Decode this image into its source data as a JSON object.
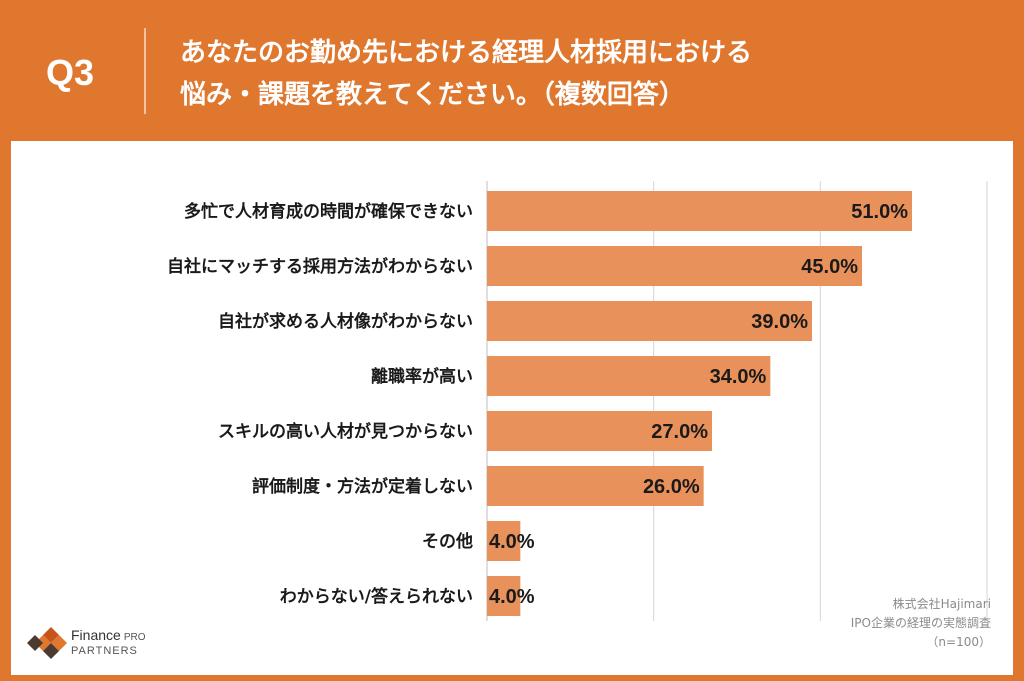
{
  "header": {
    "question_number": "Q3",
    "title_line1": "あなたのお勤め先における経理人材採用における",
    "title_line2": "悩み・課題を教えてください。（複数回答）"
  },
  "colors": {
    "background": "#e0772f",
    "bar": "#e9915a",
    "panel": "#ffffff"
  },
  "chart_data": {
    "type": "bar",
    "orientation": "horizontal",
    "categories": [
      "多忙で人材育成の時間が確保できない",
      "自社にマッチする採用方法がわからない",
      "自社が求める人材像がわからない",
      "離職率が高い",
      "スキルの高い人材が見つからない",
      "評価制度・方法が定着しない",
      "その他",
      "わからない/答えられない"
    ],
    "values": [
      51.0,
      45.0,
      39.0,
      34.0,
      27.0,
      26.0,
      4.0,
      4.0
    ],
    "value_labels": [
      "51.0%",
      "45.0%",
      "39.0%",
      "34.0%",
      "27.0%",
      "26.0%",
      "4.0%",
      "4.0%"
    ],
    "xlim": [
      0,
      60
    ],
    "gridlines": [
      0,
      20,
      40,
      60
    ],
    "grid": true,
    "legend": false
  },
  "footer": {
    "logo_name": "Finance",
    "logo_pro": "PRO",
    "logo_sub": "PARTNERS",
    "source_line1": "株式会社Hajimari",
    "source_line2": "IPO企業の経理の実態調査",
    "source_line3": "（n=100）"
  }
}
